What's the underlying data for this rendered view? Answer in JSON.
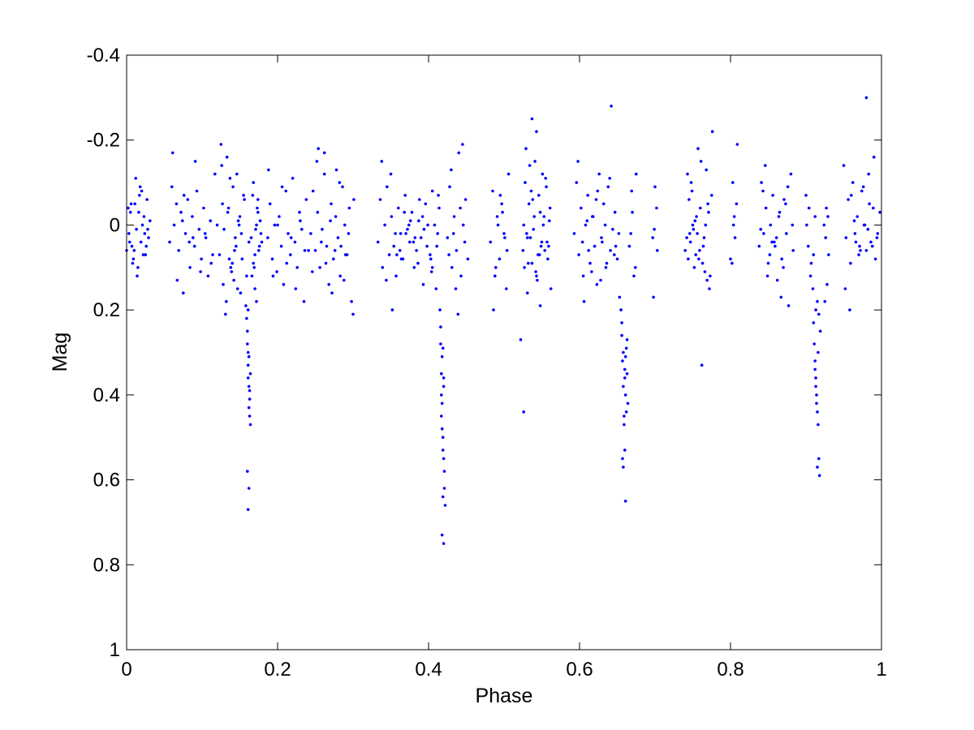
{
  "chart_data": {
    "type": "scatter",
    "title": "",
    "xlabel": "Phase",
    "ylabel": "Mag",
    "xlim": [
      0,
      1
    ],
    "ylim": [
      -0.4,
      1
    ],
    "y_axis_reversed": true,
    "grid": false,
    "legend": "none",
    "marker_color": "#0000ff",
    "x_ticks": [
      0,
      0.2,
      0.4,
      0.6,
      0.8,
      1
    ],
    "x_tick_labels": [
      "0",
      "0.2",
      "0.4",
      "0.6",
      "0.8",
      "1"
    ],
    "y_ticks": [
      -0.4,
      -0.2,
      0,
      0.2,
      0.4,
      0.6,
      0.8,
      1
    ],
    "y_tick_labels": [
      "-0.4",
      "-0.2",
      "0",
      "0.2",
      "0.4",
      "0.6",
      "0.8",
      "1"
    ],
    "series": [
      {
        "x": [
          0.0,
          0.003,
          0.005,
          0.007,
          0.009,
          0.011,
          0.013,
          0.015,
          0.017,
          0.019,
          0.021,
          0.023,
          0.025,
          0.027,
          0.029,
          0.031,
          0.002,
          0.008,
          0.014,
          0.02,
          0.026,
          0.012,
          0.018,
          0.024,
          0.01,
          0.016,
          0.028,
          0.004,
          0.022,
          0.006,
          0.057,
          0.06,
          0.063,
          0.066,
          0.069,
          0.072,
          0.075,
          0.078,
          0.081,
          0.084,
          0.087,
          0.09,
          0.093,
          0.096,
          0.099,
          0.102,
          0.105,
          0.108,
          0.111,
          0.114,
          0.117,
          0.12,
          0.061,
          0.067,
          0.074,
          0.083,
          0.091,
          0.098,
          0.104,
          0.112,
          0.076,
          0.088,
          0.123,
          0.126,
          0.129,
          0.132,
          0.135,
          0.138,
          0.141,
          0.144,
          0.147,
          0.15,
          0.153,
          0.156,
          0.159,
          0.162,
          0.125,
          0.131,
          0.137,
          0.143,
          0.149,
          0.155,
          0.128,
          0.134,
          0.14,
          0.146,
          0.152,
          0.158,
          0.127,
          0.139,
          0.145,
          0.133,
          0.151,
          0.148,
          0.136,
          0.142,
          0.159,
          0.16,
          0.161,
          0.162,
          0.163,
          0.164,
          0.16,
          0.162,
          0.161,
          0.163,
          0.164,
          0.161,
          0.162,
          0.16,
          0.163,
          0.161,
          0.162,
          0.161,
          0.165,
          0.167,
          0.169,
          0.171,
          0.173,
          0.175,
          0.177,
          0.179,
          0.166,
          0.168,
          0.17,
          0.172,
          0.174,
          0.176,
          0.178,
          0.17,
          0.174,
          0.168,
          0.172,
          0.187,
          0.19,
          0.193,
          0.196,
          0.199,
          0.202,
          0.205,
          0.208,
          0.211,
          0.214,
          0.217,
          0.22,
          0.223,
          0.226,
          0.229,
          0.232,
          0.235,
          0.238,
          0.241,
          0.188,
          0.194,
          0.2,
          0.206,
          0.212,
          0.218,
          0.224,
          0.23,
          0.236,
          0.244,
          0.247,
          0.25,
          0.253,
          0.256,
          0.259,
          0.262,
          0.265,
          0.268,
          0.271,
          0.274,
          0.277,
          0.28,
          0.283,
          0.286,
          0.289,
          0.292,
          0.295,
          0.298,
          0.301,
          0.246,
          0.252,
          0.258,
          0.264,
          0.27,
          0.276,
          0.282,
          0.288,
          0.294,
          0.3,
          0.262,
          0.272,
          0.284,
          0.278,
          0.254,
          0.29,
          0.333,
          0.336,
          0.339,
          0.342,
          0.345,
          0.348,
          0.351,
          0.354,
          0.357,
          0.36,
          0.363,
          0.366,
          0.369,
          0.372,
          0.375,
          0.378,
          0.381,
          0.384,
          0.387,
          0.39,
          0.393,
          0.396,
          0.399,
          0.402,
          0.405,
          0.338,
          0.344,
          0.35,
          0.356,
          0.362,
          0.368,
          0.374,
          0.38,
          0.386,
          0.392,
          0.398,
          0.404,
          0.37,
          0.376,
          0.382,
          0.364,
          0.388,
          0.358,
          0.394,
          0.352,
          0.408,
          0.411,
          0.414,
          0.405,
          0.41,
          0.413,
          0.403,
          0.412,
          0.415,
          0.416,
          0.417,
          0.418,
          0.419,
          0.42,
          0.421,
          0.422,
          0.416,
          0.418,
          0.42,
          0.417,
          0.419,
          0.421,
          0.418,
          0.42,
          0.417,
          0.419,
          0.418,
          0.42,
          0.419,
          0.425,
          0.428,
          0.431,
          0.434,
          0.437,
          0.44,
          0.443,
          0.446,
          0.449,
          0.452,
          0.43,
          0.436,
          0.442,
          0.448,
          0.427,
          0.439,
          0.445,
          0.433,
          0.482,
          0.485,
          0.488,
          0.491,
          0.494,
          0.497,
          0.5,
          0.503,
          0.506,
          0.486,
          0.492,
          0.498,
          0.504,
          0.489,
          0.495,
          0.501,
          0.525,
          0.528,
          0.531,
          0.534,
          0.537,
          0.54,
          0.543,
          0.546,
          0.549,
          0.552,
          0.555,
          0.558,
          0.561,
          0.527,
          0.533,
          0.539,
          0.545,
          0.551,
          0.557,
          0.53,
          0.536,
          0.542,
          0.548,
          0.554,
          0.56,
          0.532,
          0.538,
          0.544,
          0.55,
          0.556,
          0.535,
          0.541,
          0.547,
          0.553,
          0.529,
          0.559,
          0.526,
          0.562,
          0.537,
          0.543,
          0.522,
          0.526,
          0.548,
          0.531,
          0.593,
          0.596,
          0.599,
          0.602,
          0.605,
          0.608,
          0.611,
          0.614,
          0.617,
          0.62,
          0.623,
          0.626,
          0.629,
          0.632,
          0.635,
          0.638,
          0.641,
          0.644,
          0.647,
          0.65,
          0.653,
          0.598,
          0.604,
          0.61,
          0.616,
          0.622,
          0.628,
          0.634,
          0.64,
          0.646,
          0.652,
          0.612,
          0.624,
          0.636,
          0.618,
          0.642,
          0.63,
          0.606,
          0.648,
          0.655,
          0.656,
          0.657,
          0.658,
          0.659,
          0.66,
          0.661,
          0.662,
          0.663,
          0.664,
          0.656,
          0.658,
          0.66,
          0.662,
          0.657,
          0.659,
          0.661,
          0.663,
          0.66,
          0.658,
          0.661,
          0.666,
          0.669,
          0.672,
          0.675,
          0.668,
          0.674,
          0.67,
          0.697,
          0.7,
          0.703,
          0.698,
          0.702,
          0.699,
          0.74,
          0.743,
          0.746,
          0.749,
          0.752,
          0.755,
          0.758,
          0.761,
          0.764,
          0.767,
          0.77,
          0.773,
          0.776,
          0.742,
          0.748,
          0.754,
          0.76,
          0.766,
          0.772,
          0.745,
          0.751,
          0.757,
          0.763,
          0.769,
          0.775,
          0.747,
          0.753,
          0.759,
          0.765,
          0.771,
          0.744,
          0.756,
          0.768,
          0.762,
          0.75,
          0.8,
          0.803,
          0.806,
          0.809,
          0.802,
          0.805,
          0.808,
          0.804,
          0.838,
          0.841,
          0.844,
          0.847,
          0.85,
          0.853,
          0.856,
          0.859,
          0.862,
          0.865,
          0.868,
          0.871,
          0.874,
          0.877,
          0.88,
          0.883,
          0.84,
          0.846,
          0.852,
          0.858,
          0.864,
          0.87,
          0.876,
          0.882,
          0.849,
          0.861,
          0.873,
          0.855,
          0.867,
          0.843,
          0.9,
          0.903,
          0.906,
          0.909,
          0.912,
          0.915,
          0.901,
          0.907,
          0.913,
          0.904,
          0.91,
          0.91,
          0.911,
          0.912,
          0.913,
          0.914,
          0.915,
          0.916,
          0.917,
          0.918,
          0.919,
          0.912,
          0.914,
          0.916,
          0.913,
          0.915,
          0.917,
          0.924,
          0.927,
          0.93,
          0.926,
          0.929,
          0.925,
          0.928,
          0.95,
          0.953,
          0.956,
          0.959,
          0.962,
          0.965,
          0.968,
          0.971,
          0.974,
          0.977,
          0.98,
          0.983,
          0.986,
          0.989,
          0.992,
          0.995,
          0.998,
          0.952,
          0.958,
          0.964,
          0.97,
          0.976,
          0.982,
          0.988,
          0.994,
          0.96,
          0.972,
          0.984,
          0.966,
          0.978,
          0.99,
          0.98
        ],
        "y": [
          0.06,
          0.02,
          -0.03,
          0.05,
          0.08,
          -0.05,
          0.01,
          0.1,
          -0.07,
          0.04,
          0.0,
          -0.02,
          0.07,
          -0.06,
          0.03,
          -0.01,
          -0.04,
          0.09,
          0.12,
          -0.08,
          0.05,
          -0.11,
          -0.09,
          0.02,
          0.06,
          -0.03,
          0.01,
          0.04,
          0.07,
          -0.05,
          0.04,
          -0.09,
          0.0,
          -0.05,
          0.06,
          -0.03,
          0.16,
          0.02,
          -0.06,
          0.1,
          -0.02,
          0.05,
          -0.08,
          0.01,
          0.08,
          -0.04,
          0.03,
          0.12,
          -0.01,
          0.07,
          -0.12,
          0.0,
          -0.17,
          0.13,
          -0.01,
          0.04,
          -0.15,
          0.11,
          0.02,
          0.09,
          -0.07,
          0.03,
          0.07,
          -0.14,
          0.01,
          0.18,
          -0.04,
          0.1,
          -0.09,
          0.03,
          0.15,
          -0.02,
          0.08,
          -0.06,
          0.12,
          0.04,
          -0.19,
          0.21,
          -0.11,
          0.06,
          0.0,
          -0.07,
          0.14,
          -0.03,
          0.09,
          -0.12,
          0.02,
          0.19,
          -0.05,
          0.11,
          0.05,
          -0.16,
          0.16,
          -0.01,
          0.08,
          0.13,
          0.22,
          0.28,
          0.33,
          0.38,
          0.45,
          0.47,
          0.58,
          0.62,
          0.67,
          0.41,
          0.35,
          0.3,
          0.43,
          0.25,
          0.39,
          0.2,
          0.31,
          0.36,
          0.03,
          -0.07,
          0.1,
          0.01,
          -0.04,
          0.06,
          -0.01,
          0.04,
          0.12,
          -0.1,
          0.07,
          0.0,
          -0.03,
          0.05,
          0.02,
          0.15,
          -0.06,
          0.09,
          0.18,
          0.03,
          -0.05,
          0.08,
          0.0,
          0.11,
          -0.02,
          0.05,
          0.14,
          -0.08,
          0.02,
          0.07,
          -0.11,
          0.04,
          0.1,
          -0.03,
          0.01,
          0.18,
          -0.06,
          0.06,
          -0.13,
          0.12,
          0.0,
          -0.09,
          0.09,
          0.03,
          0.15,
          -0.01,
          0.06,
          0.02,
          -0.08,
          0.06,
          -0.03,
          0.1,
          0.01,
          -0.12,
          0.05,
          0.14,
          -0.05,
          0.08,
          -0.02,
          0.03,
          0.12,
          -0.09,
          0.0,
          0.07,
          -0.04,
          0.18,
          -0.06,
          0.11,
          -0.15,
          0.04,
          0.09,
          -0.01,
          0.06,
          -0.1,
          0.13,
          0.02,
          0.21,
          -0.17,
          0.16,
          0.05,
          -0.13,
          -0.18,
          0.07,
          0.04,
          -0.06,
          0.1,
          0.0,
          -0.09,
          0.07,
          -0.02,
          0.05,
          0.12,
          -0.04,
          0.02,
          0.08,
          -0.07,
          0.01,
          0.04,
          -0.03,
          0.1,
          0.06,
          -0.01,
          0.03,
          0.14,
          -0.05,
          0.0,
          0.07,
          -0.08,
          -0.15,
          0.13,
          -0.12,
          0.02,
          0.06,
          -0.03,
          0.0,
          0.04,
          0.09,
          -0.02,
          0.05,
          0.11,
          0.02,
          -0.01,
          0.03,
          0.08,
          -0.06,
          0.07,
          0.01,
          0.2,
          0.0,
          0.05,
          -0.04,
          0.1,
          0.15,
          -0.07,
          0.08,
          0.02,
          0.2,
          0.28,
          0.35,
          0.42,
          0.5,
          0.55,
          0.62,
          0.66,
          0.24,
          0.31,
          0.38,
          0.45,
          0.53,
          0.58,
          0.73,
          0.75,
          0.4,
          0.64,
          0.48,
          0.36,
          0.29,
          0.03,
          -0.09,
          0.1,
          -0.02,
          0.06,
          -0.17,
          0.12,
          0.0,
          -0.06,
          0.08,
          -0.13,
          0.15,
          -0.04,
          0.04,
          0.07,
          0.21,
          -0.19,
          0.02,
          0.04,
          -0.08,
          0.12,
          -0.02,
          0.08,
          -0.05,
          0.02,
          0.15,
          -0.12,
          0.2,
          0.0,
          -0.03,
          0.06,
          0.1,
          -0.07,
          0.03,
          0.06,
          -0.1,
          0.03,
          -0.14,
          0.09,
          -0.02,
          0.12,
          -0.07,
          0.05,
          0.0,
          -0.11,
          0.08,
          -0.04,
          0.1,
          -0.05,
          0.01,
          0.07,
          -0.12,
          0.04,
          0.02,
          -0.08,
          0.11,
          -0.03,
          0.06,
          -0.01,
          0.09,
          -0.06,
          0.13,
          0.04,
          -0.09,
          0.03,
          -0.15,
          0.07,
          -0.02,
          -0.18,
          0.05,
          0.0,
          0.15,
          -0.25,
          -0.22,
          0.27,
          0.44,
          0.19,
          0.16,
          0.02,
          -0.1,
          0.07,
          -0.04,
          0.12,
          0.0,
          -0.07,
          0.09,
          -0.02,
          0.05,
          0.14,
          -0.12,
          0.03,
          -0.05,
          0.1,
          -0.09,
          0.06,
          0.01,
          -0.03,
          0.08,
          0.17,
          -0.15,
          0.04,
          -0.01,
          0.11,
          -0.06,
          0.13,
          0.0,
          -0.11,
          0.07,
          0.02,
          0.06,
          -0.08,
          0.09,
          -0.02,
          -0.28,
          0.04,
          0.18,
          0.05,
          0.2,
          0.26,
          0.32,
          0.38,
          0.45,
          0.53,
          0.65,
          0.29,
          0.35,
          0.42,
          0.23,
          0.3,
          0.36,
          0.44,
          0.55,
          0.47,
          0.4,
          0.27,
          0.34,
          0.57,
          0.31,
          0.05,
          -0.08,
          0.12,
          -0.12,
          0.02,
          0.1,
          -0.03,
          0.03,
          -0.09,
          0.06,
          0.17,
          -0.04,
          0.01,
          0.06,
          -0.12,
          0.02,
          -0.08,
          0.1,
          -0.02,
          0.08,
          -0.15,
          0.05,
          0.0,
          -0.05,
          0.12,
          -0.22,
          0.03,
          -0.1,
          0.07,
          -0.04,
          0.11,
          0.15,
          -0.06,
          0.01,
          -0.18,
          0.09,
          0.13,
          -0.07,
          0.04,
          -0.01,
          0.06,
          0.03,
          -0.03,
          0.08,
          0.02,
          -0.13,
          0.33,
          0.0,
          0.08,
          -0.1,
          0.03,
          -0.19,
          0.09,
          -0.02,
          -0.05,
          0.0,
          0.05,
          -0.1,
          0.02,
          -0.04,
          0.09,
          0.0,
          -0.07,
          0.05,
          0.13,
          -0.03,
          0.08,
          -0.06,
          0.02,
          0.19,
          -0.12,
          0.06,
          0.01,
          -0.14,
          0.07,
          0.04,
          -0.02,
          0.1,
          -0.09,
          0.0,
          0.12,
          0.03,
          -0.05,
          0.04,
          0.17,
          -0.08,
          -0.07,
          0.05,
          0.12,
          0.15,
          -0.02,
          0.18,
          0.0,
          0.09,
          0.2,
          -0.04,
          0.07,
          0.23,
          0.28,
          0.32,
          0.36,
          0.4,
          0.44,
          0.47,
          0.55,
          0.59,
          0.25,
          0.34,
          0.42,
          0.3,
          0.38,
          0.57,
          0.21,
          0.0,
          -0.04,
          0.07,
          0.03,
          -0.02,
          0.18,
          0.14,
          -0.14,
          0.03,
          -0.06,
          0.09,
          -0.1,
          0.02,
          -0.02,
          0.05,
          -0.08,
          0.0,
          0.06,
          -0.12,
          0.04,
          -0.04,
          0.08,
          0.02,
          -0.03,
          0.15,
          0.2,
          -0.01,
          0.07,
          -0.09,
          0.01,
          0.05,
          0.03,
          -0.07,
          0.06,
          -0.05,
          0.04,
          0.0,
          -0.16,
          -0.3
        ]
      }
    ]
  }
}
